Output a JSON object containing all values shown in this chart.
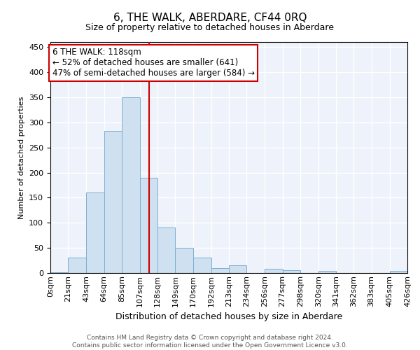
{
  "title": "6, THE WALK, ABERDARE, CF44 0RQ",
  "subtitle": "Size of property relative to detached houses in Aberdare",
  "xlabel": "Distribution of detached houses by size in Aberdare",
  "ylabel": "Number of detached properties",
  "bar_color": "#cfe0f0",
  "bar_edge_color": "#7bafd4",
  "background_color": "#eef2fa",
  "grid_color": "#ffffff",
  "vline_x": 118,
  "vline_color": "#cc0000",
  "annotation_line1": "6 THE WALK: 118sqm",
  "annotation_line2": "← 52% of detached houses are smaller (641)",
  "annotation_line3": "47% of semi-detached houses are larger (584) →",
  "annotation_box_color": "white",
  "annotation_box_edge_color": "#cc0000",
  "footer_text": "Contains HM Land Registry data © Crown copyright and database right 2024.\nContains public sector information licensed under the Open Government Licence v3.0.",
  "bin_edges": [
    0,
    21,
    43,
    64,
    85,
    107,
    128,
    149,
    170,
    192,
    213,
    234,
    256,
    277,
    298,
    320,
    341,
    362,
    383,
    405,
    426
  ],
  "bin_labels": [
    "0sqm",
    "21sqm",
    "43sqm",
    "64sqm",
    "85sqm",
    "107sqm",
    "128sqm",
    "149sqm",
    "170sqm",
    "192sqm",
    "213sqm",
    "234sqm",
    "256sqm",
    "277sqm",
    "298sqm",
    "320sqm",
    "341sqm",
    "362sqm",
    "383sqm",
    "405sqm",
    "426sqm"
  ],
  "bar_heights": [
    2,
    30,
    160,
    283,
    350,
    190,
    90,
    50,
    30,
    10,
    15,
    0,
    8,
    5,
    0,
    4,
    0,
    0,
    0,
    4
  ],
  "ylim": [
    0,
    460
  ],
  "yticks": [
    0,
    50,
    100,
    150,
    200,
    250,
    300,
    350,
    400,
    450
  ],
  "title_fontsize": 11,
  "subtitle_fontsize": 9,
  "ylabel_fontsize": 8,
  "xlabel_fontsize": 9,
  "tick_fontsize": 8,
  "annot_fontsize": 8.5,
  "footer_fontsize": 6.5
}
